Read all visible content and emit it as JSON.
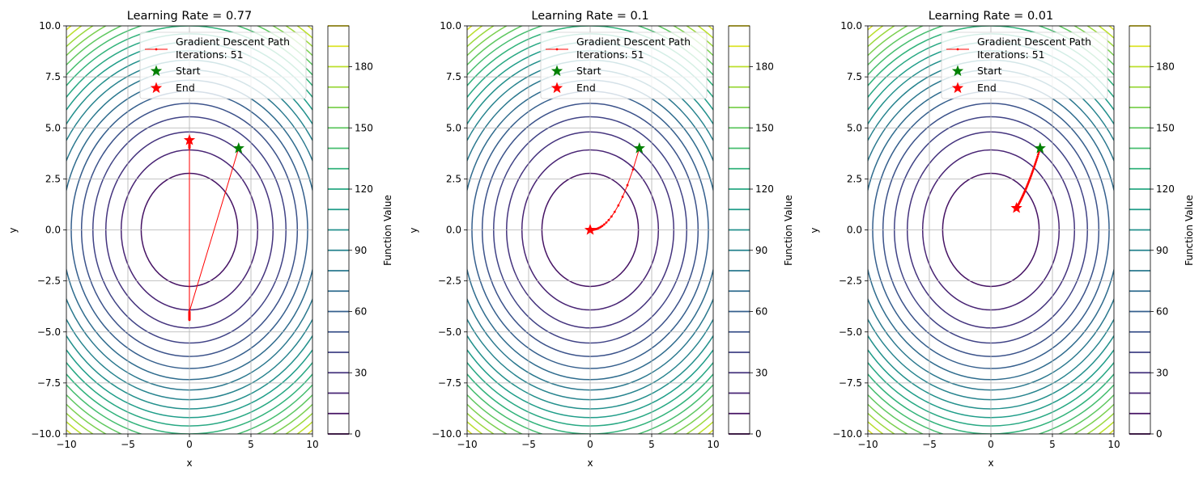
{
  "chart_data": [
    {
      "type": "contour",
      "title": "Learning Rate = 0.77",
      "xlabel": "x",
      "ylabel": "y",
      "xlim": [
        -10,
        10
      ],
      "ylim": [
        -10,
        10
      ],
      "xticks": [
        "−10",
        "−5",
        "0",
        "5",
        "10"
      ],
      "yticks": [
        "−10.0",
        "−7.5",
        "−5.0",
        "−2.5",
        "0.0",
        "2.5",
        "5.0",
        "7.5",
        "10.0"
      ],
      "grid": true,
      "learning_rate": 0.77,
      "iterations": 51,
      "start": [
        4,
        4
      ],
      "end": [
        0,
        4.4
      ],
      "colorbar": {
        "label": "Function Value",
        "range": [
          0,
          200
        ],
        "levels_step": 10,
        "ticks": [
          "0",
          "30",
          "60",
          "90",
          "120",
          "150",
          "180"
        ],
        "colormap": "viridis"
      },
      "legend": {
        "placement": "top-center",
        "entries": [
          "Gradient Descent Path\nIterations: 51",
          "Start",
          "End"
        ],
        "path_line1": "Gradient Descent Path",
        "path_line2": "Iterations: 51",
        "start": "Start",
        "end": "End"
      },
      "colors": {
        "path": "#ff0000",
        "start": "#008000",
        "end": "#ff0000"
      }
    },
    {
      "type": "contour",
      "title": "Learning Rate = 0.1",
      "xlabel": "x",
      "ylabel": "y",
      "xlim": [
        -10,
        10
      ],
      "ylim": [
        -10,
        10
      ],
      "xticks": [
        "−10",
        "−5",
        "0",
        "5",
        "10"
      ],
      "yticks": [
        "−10.0",
        "−7.5",
        "−5.0",
        "−2.5",
        "0.0",
        "2.5",
        "5.0",
        "7.5",
        "10.0"
      ],
      "grid": true,
      "learning_rate": 0.1,
      "iterations": 51,
      "start": [
        4,
        4
      ],
      "end": [
        0,
        0
      ],
      "colorbar": {
        "label": "Function Value",
        "range": [
          0,
          200
        ],
        "levels_step": 10,
        "ticks": [
          "0",
          "30",
          "60",
          "90",
          "120",
          "150",
          "180"
        ],
        "colormap": "viridis"
      },
      "legend": {
        "placement": "top-center",
        "path_line1": "Gradient Descent Path",
        "path_line2": "Iterations: 51",
        "start": "Start",
        "end": "End"
      },
      "colors": {
        "path": "#ff0000",
        "start": "#008000",
        "end": "#ff0000"
      }
    },
    {
      "type": "contour",
      "title": "Learning Rate = 0.01",
      "xlabel": "x",
      "ylabel": "y",
      "xlim": [
        -10,
        10
      ],
      "ylim": [
        -10,
        10
      ],
      "xticks": [
        "−10",
        "−5",
        "0",
        "5",
        "10"
      ],
      "yticks": [
        "−10.0",
        "−7.5",
        "−5.0",
        "−2.5",
        "0.0",
        "2.5",
        "5.0",
        "7.5",
        "10.0"
      ],
      "grid": true,
      "learning_rate": 0.01,
      "iterations": 51,
      "start": [
        4,
        4
      ],
      "end": [
        2.08,
        1.07
      ],
      "colorbar": {
        "label": "Function Value",
        "range": [
          0,
          200
        ],
        "levels_step": 10,
        "ticks": [
          "0",
          "30",
          "60",
          "90",
          "120",
          "150",
          "180"
        ],
        "colormap": "viridis"
      },
      "legend": {
        "placement": "top-center",
        "path_line1": "Gradient Descent Path",
        "path_line2": "Iterations: 51",
        "start": "Start",
        "end": "End"
      },
      "colors": {
        "path": "#ff0000",
        "start": "#008000",
        "end": "#ff0000"
      }
    }
  ]
}
